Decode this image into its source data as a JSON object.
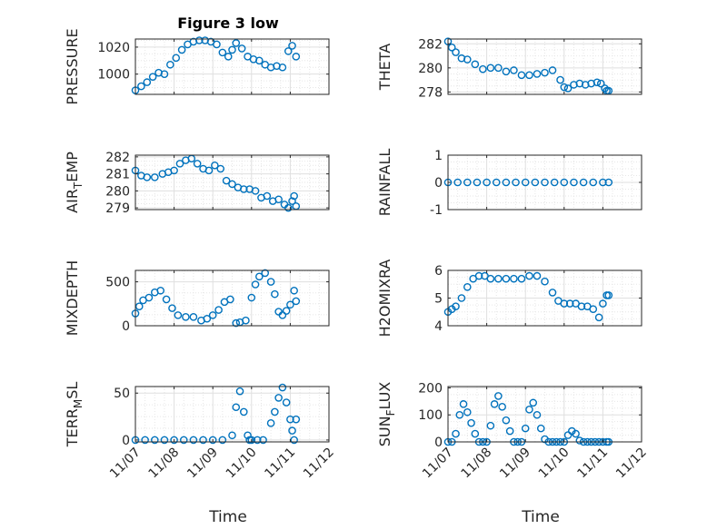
{
  "figure": {
    "title": "Figure 3 low",
    "xlabel": "Time"
  },
  "colors": {
    "marker": "#0072BD",
    "axis": "#262626",
    "grid": "#DFDFDF",
    "minor_grid": "#E6E6E6"
  },
  "chart_data": [
    {
      "type": "scatter",
      "ylabel": "PRESSURE",
      "ylim": [
        985,
        1026
      ],
      "yticks": [
        1000,
        1020
      ],
      "ytick_labels": [
        "1000",
        "1020"
      ],
      "title": "Figure 3 low",
      "grid": true,
      "x": [
        0.0,
        0.15,
        0.3,
        0.45,
        0.6,
        0.75,
        0.9,
        1.05,
        1.2,
        1.35,
        1.5,
        1.65,
        1.8,
        1.95,
        2.1,
        2.25,
        2.4,
        2.5,
        2.6,
        2.75,
        2.9,
        3.05,
        3.2,
        3.35,
        3.5,
        3.65,
        3.8,
        3.95,
        4.05,
        4.15
      ],
      "y": [
        988,
        991,
        994,
        998,
        1001,
        1000,
        1007,
        1012,
        1018,
        1022,
        1024,
        1025,
        1025,
        1024,
        1022,
        1016,
        1013,
        1018,
        1023,
        1019,
        1013,
        1011,
        1010,
        1007,
        1005,
        1006,
        1005,
        1017,
        1021,
        1013
      ]
    },
    {
      "type": "scatter",
      "ylabel": "THETA",
      "ylim": [
        277.8,
        282.4
      ],
      "yticks": [
        278,
        280,
        282
      ],
      "ytick_labels": [
        "278",
        "280",
        "282"
      ],
      "grid": true,
      "x": [
        0.0,
        0.1,
        0.2,
        0.35,
        0.5,
        0.7,
        0.9,
        1.1,
        1.3,
        1.5,
        1.7,
        1.9,
        2.1,
        2.3,
        2.5,
        2.7,
        2.9,
        3.0,
        3.1,
        3.25,
        3.4,
        3.55,
        3.7,
        3.85,
        3.95,
        4.05,
        4.1,
        4.15
      ],
      "y": [
        282.2,
        281.7,
        281.3,
        280.8,
        280.7,
        280.3,
        279.9,
        280.0,
        280.0,
        279.7,
        279.8,
        279.4,
        279.4,
        279.5,
        279.6,
        279.8,
        279.0,
        278.4,
        278.3,
        278.6,
        278.7,
        278.6,
        278.7,
        278.8,
        278.7,
        278.3,
        278.1,
        278.1
      ]
    },
    {
      "type": "scatter",
      "ylabel": "AIR",
      "ylabel_sub": "T",
      "ylabel_suffix": "EMP",
      "ylim": [
        278.9,
        282.1
      ],
      "yticks": [
        279,
        280,
        281,
        282
      ],
      "ytick_labels": [
        "279",
        "280",
        "281",
        "282"
      ],
      "grid": true,
      "x": [
        0.0,
        0.15,
        0.3,
        0.5,
        0.7,
        0.85,
        1.0,
        1.15,
        1.3,
        1.45,
        1.6,
        1.75,
        1.9,
        2.05,
        2.2,
        2.35,
        2.5,
        2.65,
        2.8,
        2.95,
        3.1,
        3.25,
        3.4,
        3.55,
        3.7,
        3.85,
        3.95,
        4.05,
        4.1,
        4.15
      ],
      "y": [
        281.2,
        280.9,
        280.8,
        280.8,
        281.0,
        281.1,
        281.2,
        281.6,
        281.8,
        281.9,
        281.6,
        281.3,
        281.2,
        281.5,
        281.3,
        280.6,
        280.4,
        280.2,
        280.1,
        280.1,
        280.0,
        279.6,
        279.7,
        279.4,
        279.5,
        279.2,
        279.0,
        279.4,
        279.7,
        279.1
      ]
    },
    {
      "type": "scatter",
      "ylabel": "RAINFALL",
      "ylim": [
        -1,
        1
      ],
      "yticks": [
        -1,
        0,
        1
      ],
      "ytick_labels": [
        "-1",
        "0",
        "1"
      ],
      "grid": true,
      "x": [
        0.0,
        0.25,
        0.5,
        0.75,
        1.0,
        1.25,
        1.5,
        1.75,
        2.0,
        2.25,
        2.5,
        2.75,
        3.0,
        3.25,
        3.5,
        3.75,
        4.0,
        4.15
      ],
      "y": [
        0,
        0,
        0,
        0,
        0,
        0,
        0,
        0,
        0,
        0,
        0,
        0,
        0,
        0,
        0,
        0,
        0,
        0
      ]
    },
    {
      "type": "scatter",
      "ylabel": "MIXDEPTH",
      "ylim": [
        0,
        630
      ],
      "yticks": [
        0,
        500
      ],
      "ytick_labels": [
        "0",
        "500"
      ],
      "grid": true,
      "x": [
        0.0,
        0.1,
        0.2,
        0.35,
        0.5,
        0.65,
        0.8,
        0.95,
        1.1,
        1.3,
        1.5,
        1.7,
        1.85,
        2.0,
        2.15,
        2.3,
        2.45,
        2.6,
        2.7,
        2.85,
        3.0,
        3.1,
        3.2,
        3.35,
        3.5,
        3.6,
        3.7,
        3.8,
        3.9,
        4.0,
        4.1,
        4.15
      ],
      "y": [
        140,
        220,
        290,
        320,
        380,
        400,
        300,
        200,
        120,
        100,
        100,
        60,
        80,
        120,
        180,
        270,
        300,
        30,
        40,
        60,
        320,
        470,
        560,
        600,
        500,
        360,
        160,
        120,
        170,
        240,
        400,
        280
      ]
    },
    {
      "type": "scatter",
      "ylabel": "H2OMIXRA",
      "ylim": [
        4,
        6
      ],
      "yticks": [
        4,
        5,
        6
      ],
      "ytick_labels": [
        "4",
        "5",
        "6"
      ],
      "grid": true,
      "x": [
        0.0,
        0.1,
        0.2,
        0.35,
        0.5,
        0.65,
        0.8,
        0.95,
        1.1,
        1.3,
        1.5,
        1.7,
        1.9,
        2.1,
        2.3,
        2.5,
        2.7,
        2.85,
        3.0,
        3.15,
        3.3,
        3.45,
        3.6,
        3.75,
        3.9,
        4.0,
        4.1,
        4.15
      ],
      "y": [
        4.5,
        4.6,
        4.7,
        5.0,
        5.4,
        5.7,
        5.8,
        5.8,
        5.7,
        5.7,
        5.7,
        5.7,
        5.7,
        5.8,
        5.8,
        5.6,
        5.2,
        4.9,
        4.8,
        4.8,
        4.8,
        4.7,
        4.7,
        4.6,
        4.3,
        4.8,
        5.1,
        5.1
      ]
    },
    {
      "type": "scatter",
      "ylabel": "TERR",
      "ylabel_sub": "M",
      "ylabel_suffix": "SL",
      "ylim": [
        -2,
        57
      ],
      "yticks": [
        0,
        50
      ],
      "ytick_labels": [
        "0",
        "50"
      ],
      "grid": true,
      "x": [
        0.0,
        0.25,
        0.5,
        0.75,
        1.0,
        1.25,
        1.5,
        1.75,
        2.0,
        2.25,
        2.5,
        2.6,
        2.7,
        2.8,
        2.9,
        2.95,
        3.0,
        3.15,
        3.3,
        3.5,
        3.6,
        3.7,
        3.8,
        3.9,
        4.0,
        4.05,
        4.1,
        4.15
      ],
      "y": [
        0,
        0,
        0,
        0,
        0,
        0,
        0,
        0,
        0,
        0,
        5,
        35,
        52,
        30,
        5,
        0,
        0,
        0,
        0,
        18,
        30,
        45,
        56,
        40,
        22,
        10,
        0,
        22
      ]
    },
    {
      "type": "scatter",
      "ylabel": "SUN",
      "ylabel_sub": "F",
      "ylabel_suffix": "LUX",
      "ylim": [
        0,
        205
      ],
      "yticks": [
        0,
        100,
        200
      ],
      "ytick_labels": [
        "0",
        "100",
        "200"
      ],
      "grid": true,
      "x": [
        0.0,
        0.1,
        0.2,
        0.3,
        0.4,
        0.5,
        0.6,
        0.7,
        0.8,
        0.9,
        1.0,
        1.1,
        1.2,
        1.3,
        1.4,
        1.5,
        1.6,
        1.7,
        1.8,
        1.9,
        2.0,
        2.1,
        2.2,
        2.3,
        2.4,
        2.5,
        2.6,
        2.7,
        2.8,
        2.9,
        3.0,
        3.1,
        3.2,
        3.3,
        3.4,
        3.5,
        3.6,
        3.7,
        3.8,
        3.9,
        4.0,
        4.1,
        4.15
      ],
      "y": [
        0,
        0,
        30,
        100,
        140,
        110,
        70,
        30,
        0,
        0,
        0,
        60,
        140,
        170,
        130,
        80,
        40,
        0,
        0,
        0,
        50,
        120,
        145,
        100,
        50,
        10,
        0,
        0,
        0,
        0,
        0,
        25,
        40,
        30,
        5,
        0,
        0,
        0,
        0,
        0,
        0,
        0,
        0
      ]
    }
  ],
  "xaxis": {
    "xlim": [
      0,
      5
    ],
    "ticks": [
      0,
      1,
      2,
      3,
      4,
      5
    ],
    "labels": [
      "11/07",
      "11/08",
      "11/09",
      "11/10",
      "11/11",
      "11/12"
    ]
  }
}
